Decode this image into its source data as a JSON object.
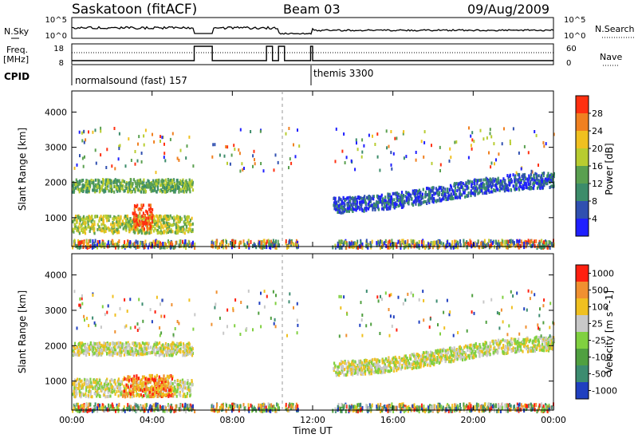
{
  "header": {
    "title": "Saskatoon (fitACF)",
    "beam": "Beam 03",
    "date": "09/Aug/2009"
  },
  "top_panels": {
    "nsky_label": "N.Sky",
    "nsearch_label": "N.Search",
    "freq_label_line1": "Freq.",
    "freq_label_line2": "[MHz]",
    "nave_label": "Nave",
    "cpid_label": "CPID",
    "nsky_ticks": [
      "10^5",
      "10^0"
    ],
    "nsearch_ticks": [
      "10^5",
      "10^0"
    ],
    "freq_ticks": [
      "18",
      "8"
    ],
    "nave_ticks": [
      "60",
      "0"
    ]
  },
  "cpid_segments": [
    {
      "start_hour": 0.0,
      "label": "normalsound (fast) 157"
    },
    {
      "start_hour": 12.0,
      "label": "themis 3300"
    }
  ],
  "chart_data": [
    {
      "type": "heatmap",
      "panel": "power",
      "ylabel": "Slant Range [km]",
      "xlabel": "Time UT",
      "x_ticks": [
        "00:00",
        "04:00",
        "08:00",
        "12:00",
        "16:00",
        "20:00",
        "00:00"
      ],
      "xlim_hours": [
        0,
        24
      ],
      "ylim_km": [
        180,
        4600
      ],
      "y_ticks": [
        1000,
        2000,
        3000,
        4000
      ],
      "colorbar_label": "Power [dB]",
      "colorbar_ticks": [
        "4",
        "8",
        "12",
        "16",
        "20",
        "24",
        "28"
      ],
      "colorbar_colors": [
        "#1f1fff",
        "#3050b0",
        "#3c8c6a",
        "#5aa050",
        "#b8cc30",
        "#f0c020",
        "#f08020",
        "#ff3010"
      ],
      "data_gaps_hours": [
        [
          6.1,
          6.9
        ],
        [
          10.3,
          10.6
        ],
        [
          11.3,
          12.9
        ]
      ],
      "echo_bands": [
        {
          "t0": 0.0,
          "t1": 6.0,
          "r_center": 1950,
          "r_halfwidth": 180,
          "level": 3
        },
        {
          "t0": 0.0,
          "t1": 6.0,
          "r_center": 850,
          "r_halfwidth": 250,
          "level": 4
        },
        {
          "t0": 3.0,
          "t1": 4.0,
          "r_center": 1050,
          "r_halfwidth": 350,
          "level": 7
        },
        {
          "t0": 13.0,
          "t1": 24.0,
          "r_center": 1550,
          "r_halfwidth": 220,
          "level": 1
        }
      ]
    },
    {
      "type": "heatmap",
      "panel": "velocity",
      "ylabel": "Slant Range [km]",
      "xlabel": "Time UT",
      "x_ticks": [
        "00:00",
        "04:00",
        "08:00",
        "12:00",
        "16:00",
        "20:00",
        "00:00"
      ],
      "xlim_hours": [
        0,
        24
      ],
      "ylim_km": [
        180,
        4600
      ],
      "y_ticks": [
        1000,
        2000,
        3000,
        4000
      ],
      "colorbar_label": "Velocity [m s^-1]",
      "colorbar_ticks": [
        "1000",
        "500",
        "100",
        "25",
        "-25",
        "-100",
        "-500",
        "-1000"
      ],
      "colorbar_colors": [
        "#2040c0",
        "#3c8c70",
        "#50a040",
        "#80d040",
        "#c8c8c8",
        "#f0c020",
        "#f09030",
        "#ff2010"
      ],
      "echo_bands": [
        {
          "t0": 0.0,
          "t1": 6.0,
          "r_center": 1950,
          "r_halfwidth": 180,
          "level": 4
        },
        {
          "t0": 0.0,
          "t1": 6.0,
          "r_center": 850,
          "r_halfwidth": 250,
          "level": 4
        },
        {
          "t0": 2.5,
          "t1": 5.0,
          "r_center": 900,
          "r_halfwidth": 300,
          "level": 6
        },
        {
          "t0": 13.0,
          "t1": 24.0,
          "r_center": 1550,
          "r_halfwidth": 200,
          "level": 4
        }
      ]
    }
  ]
}
